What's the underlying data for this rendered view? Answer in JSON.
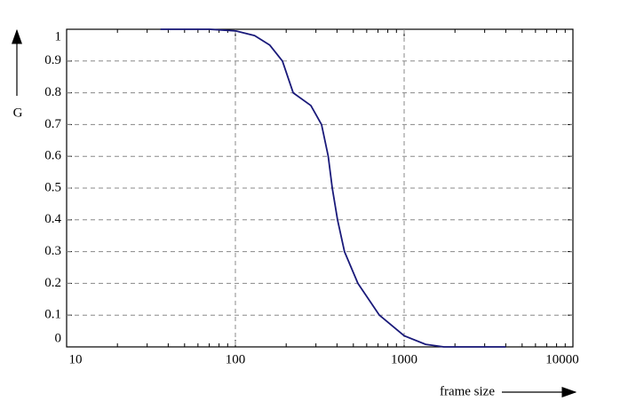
{
  "chart_data": {
    "type": "line",
    "x_label": "frame size",
    "y_label": "G",
    "x": [
      36,
      70,
      100,
      130,
      160,
      190,
      220,
      280,
      324,
      355,
      375,
      403,
      443,
      532,
      713,
      1000,
      1340,
      1720,
      4000
    ],
    "series": [
      {
        "color": "#1a1a7a",
        "values": [
          1.0,
          1.0,
          0.995,
          0.98,
          0.95,
          0.9,
          0.8,
          0.76,
          0.7,
          0.6,
          0.5,
          0.4,
          0.3,
          0.2,
          0.1,
          0.035,
          0.008,
          0,
          0
        ]
      }
    ],
    "xlim": [
      10,
      10000
    ],
    "ylim": [
      0,
      1
    ],
    "xlog": true,
    "xticks": [
      10,
      100,
      1000,
      10000
    ],
    "yticks": [
      0,
      0.1,
      0.2,
      0.3,
      0.4,
      0.5,
      0.6,
      0.7,
      0.8,
      0.9,
      1
    ],
    "grid": true
  }
}
